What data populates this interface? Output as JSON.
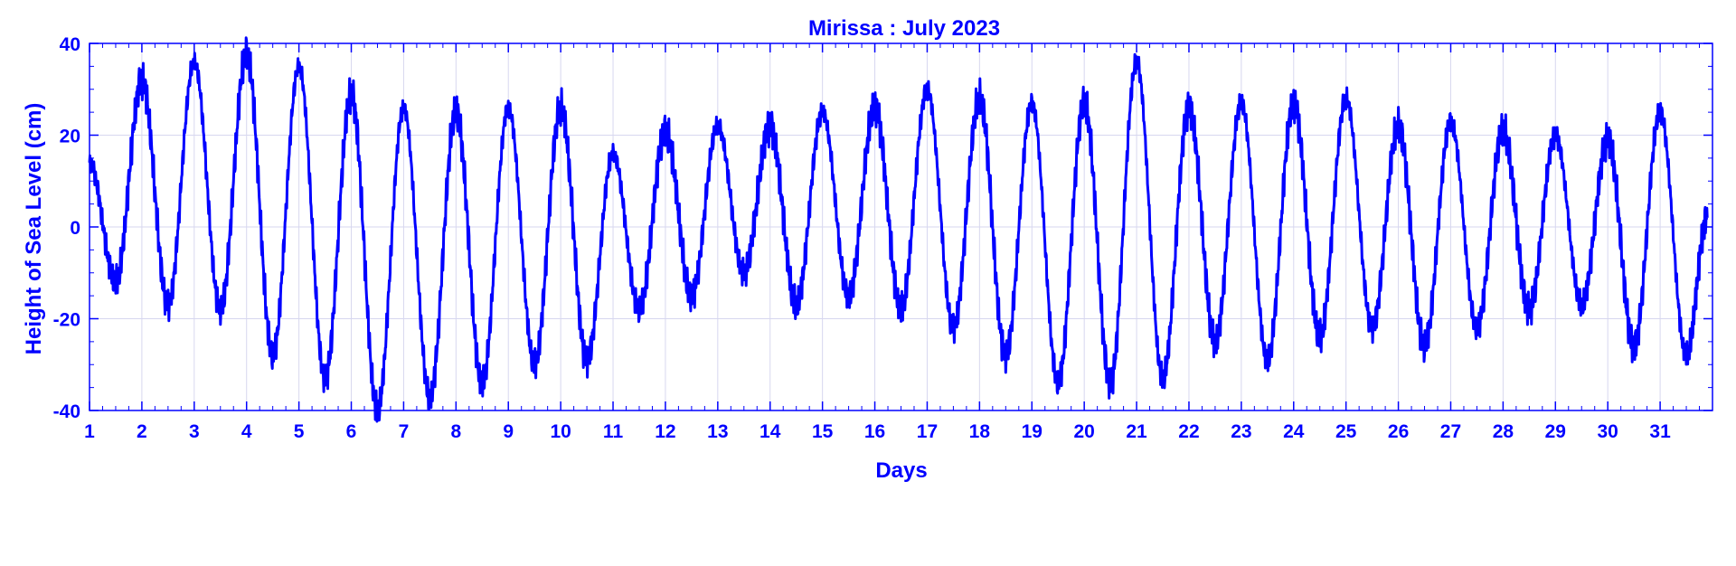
{
  "chart_data": {
    "type": "line",
    "title": "Mirissa : July 2023",
    "xlabel": "Days",
    "ylabel": "Height of Sea Level (cm)",
    "xlim": [
      1,
      32
    ],
    "ylim": [
      -40,
      40
    ],
    "x_ticks": [
      1,
      2,
      3,
      4,
      5,
      6,
      7,
      8,
      9,
      10,
      11,
      12,
      13,
      14,
      15,
      16,
      17,
      18,
      19,
      20,
      21,
      22,
      23,
      24,
      25,
      26,
      27,
      28,
      29,
      30,
      31
    ],
    "y_ticks": [
      -40,
      -20,
      0,
      20,
      40
    ],
    "grid": true,
    "line_color": "#0000ff",
    "series": [
      {
        "x": [
          1.0,
          1.5,
          2.0,
          2.5,
          3.0,
          3.5,
          4.0,
          4.5,
          5.0,
          5.5,
          6.0,
          6.5,
          7.0,
          7.5,
          8.0,
          8.5,
          9.0,
          9.5,
          10.0,
          10.5,
          11.0,
          11.5,
          12.0,
          12.5,
          13.0,
          13.5,
          14.0,
          14.5,
          15.0,
          15.5,
          16.0,
          16.5,
          17.0,
          17.5,
          18.0,
          18.5,
          19.0,
          19.5,
          20.0,
          20.5,
          21.0,
          21.5,
          22.0,
          22.5,
          23.0,
          23.5,
          24.0,
          24.5,
          25.0,
          25.5,
          26.0,
          26.5,
          27.0,
          27.5,
          28.0,
          28.5,
          29.0,
          29.5,
          30.0,
          30.5,
          31.0,
          31.5,
          31.9
        ],
        "y": [
          14,
          -12,
          32,
          -17,
          36,
          -18,
          38,
          -28,
          35,
          -33,
          29,
          -40,
          26,
          -37,
          25,
          -34,
          26,
          -30,
          26,
          -29,
          16,
          -18,
          21,
          -15,
          22,
          -10,
          22,
          -17,
          25,
          -15,
          26,
          -18,
          30,
          -22,
          28,
          -28,
          27,
          -34,
          27,
          -34,
          36,
          -33,
          26,
          -25,
          27,
          -29,
          27,
          -24,
          28,
          -22,
          22,
          -26,
          23,
          -22,
          21,
          -18,
          20,
          -17,
          19,
          -26,
          25,
          -28,
          2
        ]
      }
    ]
  }
}
